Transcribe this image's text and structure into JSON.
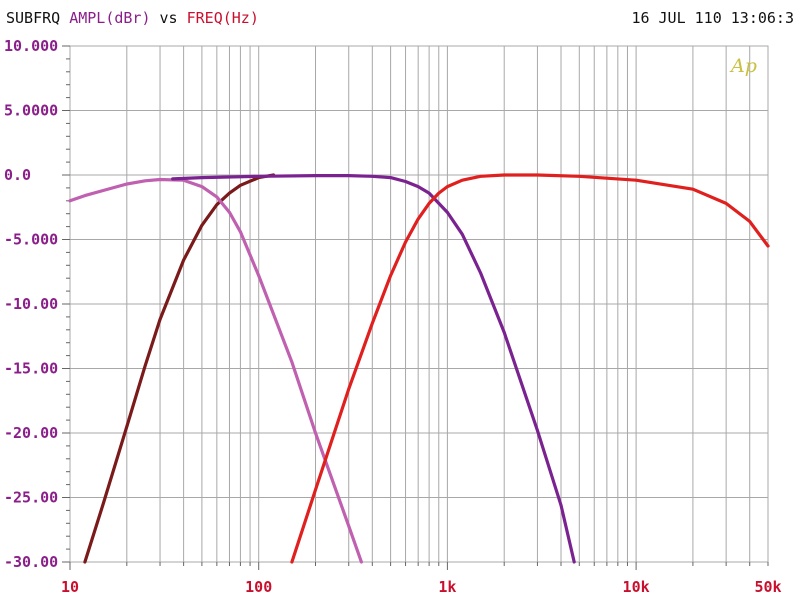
{
  "header": {
    "measure": "SUBFRQ",
    "y_quantity": "AMPL(dBr)",
    "vs": "vs",
    "x_quantity": "FREQ(Hz)",
    "date": "16 JUL 110",
    "time": "13:06:3"
  },
  "logo": "Ap",
  "colors": {
    "grid": "#a8a8a8",
    "axis_labels_y": "#8a1f8a",
    "axis_labels_x": "#c8102e",
    "series_colors": [
      "#7a1a1a",
      "#c060b0",
      "#7a2390",
      "#e0201e"
    ]
  },
  "chart_data": {
    "type": "line",
    "x_scale": "log",
    "xlim": [
      10,
      50000
    ],
    "ylim": [
      -30,
      10
    ],
    "grid": true,
    "yticks": [
      {
        "value": 10,
        "label": "10.000"
      },
      {
        "value": 5,
        "label": "5.0000"
      },
      {
        "value": 0,
        "label": "0.0"
      },
      {
        "value": -5,
        "label": "-5.000"
      },
      {
        "value": -10,
        "label": "-10.00"
      },
      {
        "value": -15,
        "label": "-15.00"
      },
      {
        "value": -20,
        "label": "-20.00"
      },
      {
        "value": -25,
        "label": "-25.00"
      },
      {
        "value": -30,
        "label": "-30.00"
      }
    ],
    "xticks": [
      {
        "value": 10,
        "label": "10"
      },
      {
        "value": 100,
        "label": "100"
      },
      {
        "value": 1000,
        "label": "1k"
      },
      {
        "value": 10000,
        "label": "10k"
      },
      {
        "value": 50000,
        "label": "50k"
      }
    ],
    "series": [
      {
        "x": [
          12,
          15,
          20,
          25,
          30,
          40,
          50,
          60,
          70,
          80,
          100,
          120
        ],
        "y": [
          -30,
          -25.5,
          -19.5,
          -14.8,
          -11.2,
          -6.6,
          -3.9,
          -2.3,
          -1.4,
          -0.8,
          -0.2,
          0
        ]
      },
      {
        "x": [
          10,
          12,
          15,
          20,
          25,
          30,
          40,
          50,
          60,
          70,
          80,
          100,
          150,
          200,
          300,
          350
        ],
        "y": [
          -2.0,
          -1.6,
          -1.2,
          -0.7,
          -0.45,
          -0.35,
          -0.4,
          -0.9,
          -1.7,
          -2.9,
          -4.4,
          -7.8,
          -14.5,
          -20.0,
          -27.2,
          -30.0
        ]
      },
      {
        "x": [
          35,
          50,
          100,
          200,
          300,
          400,
          500,
          600,
          700,
          800,
          1000,
          1200,
          1500,
          2000,
          3000,
          4000,
          4700
        ],
        "y": [
          -0.3,
          -0.2,
          -0.1,
          -0.05,
          -0.05,
          -0.1,
          -0.2,
          -0.5,
          -0.9,
          -1.4,
          -2.9,
          -4.6,
          -7.6,
          -12.2,
          -19.8,
          -25.6,
          -30.0
        ]
      },
      {
        "x": [
          150,
          200,
          300,
          400,
          500,
          600,
          700,
          800,
          900,
          1000,
          1200,
          1500,
          2000,
          3000,
          5000,
          10000,
          20000,
          30000,
          40000,
          50000
        ],
        "y": [
          -30.0,
          -24.4,
          -16.6,
          -11.5,
          -7.8,
          -5.2,
          -3.4,
          -2.2,
          -1.4,
          -0.9,
          -0.4,
          -0.1,
          0,
          0,
          -0.1,
          -0.4,
          -1.1,
          -2.2,
          -3.6,
          -5.5
        ]
      }
    ]
  }
}
